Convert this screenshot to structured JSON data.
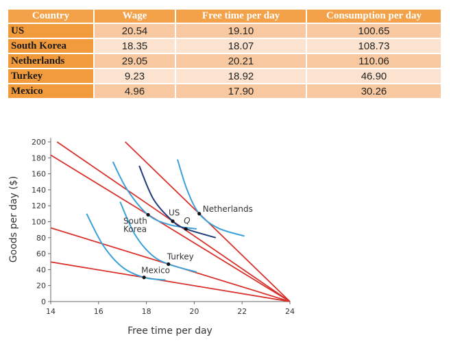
{
  "table": {
    "headers": [
      "Country",
      "Wage",
      "Free time per day",
      "Consumption per day"
    ],
    "rows": [
      [
        "US",
        "20.54",
        "19.10",
        "100.65"
      ],
      [
        "South Korea",
        "18.35",
        "18.07",
        "108.73"
      ],
      [
        "Netherlands",
        "29.05",
        "20.21",
        "110.06"
      ],
      [
        "Turkey",
        "9.23",
        "18.92",
        "46.90"
      ],
      [
        "Mexico",
        "4.96",
        "17.90",
        "30.26"
      ]
    ]
  },
  "chart_data": {
    "type": "line",
    "xlabel": "Free time per day",
    "ylabel": "Goods per day ($)",
    "xlim": [
      14,
      24
    ],
    "ylim": [
      0,
      200
    ],
    "xticks": [
      "14",
      "16",
      "18",
      "20",
      "22",
      "24"
    ],
    "yticks": [
      "0",
      "20",
      "40",
      "60",
      "80",
      "100",
      "120",
      "140",
      "160",
      "180",
      "200"
    ],
    "grid": false,
    "budget_lines": [
      {
        "country": "US",
        "wage": 20.54
      },
      {
        "country": "South Korea",
        "wage": 18.35
      },
      {
        "country": "Netherlands",
        "wage": 29.05
      },
      {
        "country": "Turkey",
        "wage": 9.23
      },
      {
        "country": "Mexico",
        "wage": 4.96
      }
    ],
    "indifference_curves": [
      {
        "country": "South Korea",
        "color": "#3AA0D8",
        "points": [
          [
            16.6,
            175
          ],
          [
            17.2,
            140
          ],
          [
            18.07,
            108.7
          ],
          [
            19,
            96
          ],
          [
            20.1,
            91
          ]
        ]
      },
      {
        "country": "US",
        "color": "#1F3A7A",
        "points": [
          [
            17.7,
            170
          ],
          [
            18.3,
            128
          ],
          [
            19.1,
            100.65
          ],
          [
            19.65,
            91
          ],
          [
            20.9,
            80
          ]
        ]
      },
      {
        "country": "Netherlands",
        "color": "#3AA0D8",
        "points": [
          [
            19.3,
            178
          ],
          [
            19.7,
            140
          ],
          [
            20.21,
            110
          ],
          [
            21,
            92
          ],
          [
            22.1,
            82
          ]
        ]
      },
      {
        "country": "Turkey",
        "color": "#3AA0D8",
        "points": [
          [
            16.9,
            125
          ],
          [
            17.5,
            85
          ],
          [
            18.2,
            59
          ],
          [
            18.92,
            46.9
          ],
          [
            20.1,
            37
          ]
        ]
      },
      {
        "country": "Mexico",
        "color": "#3AA0D8",
        "points": [
          [
            15.5,
            110
          ],
          [
            16.2,
            70
          ],
          [
            17,
            43
          ],
          [
            17.9,
            30.26
          ],
          [
            18.8,
            27
          ]
        ]
      }
    ],
    "points": [
      {
        "label": "US",
        "x": 19.1,
        "y": 100.65
      },
      {
        "label": "South Korea",
        "lines": [
          "South",
          "Korea"
        ],
        "x": 18.07,
        "y": 108.73
      },
      {
        "label": "Netherlands",
        "x": 20.21,
        "y": 110.06
      },
      {
        "label": "Turkey",
        "x": 18.92,
        "y": 46.9
      },
      {
        "label": "Mexico",
        "x": 17.9,
        "y": 30.26
      },
      {
        "label": "Q",
        "x": 19.65,
        "y": 91
      }
    ],
    "budget_color": "#D9302B"
  }
}
